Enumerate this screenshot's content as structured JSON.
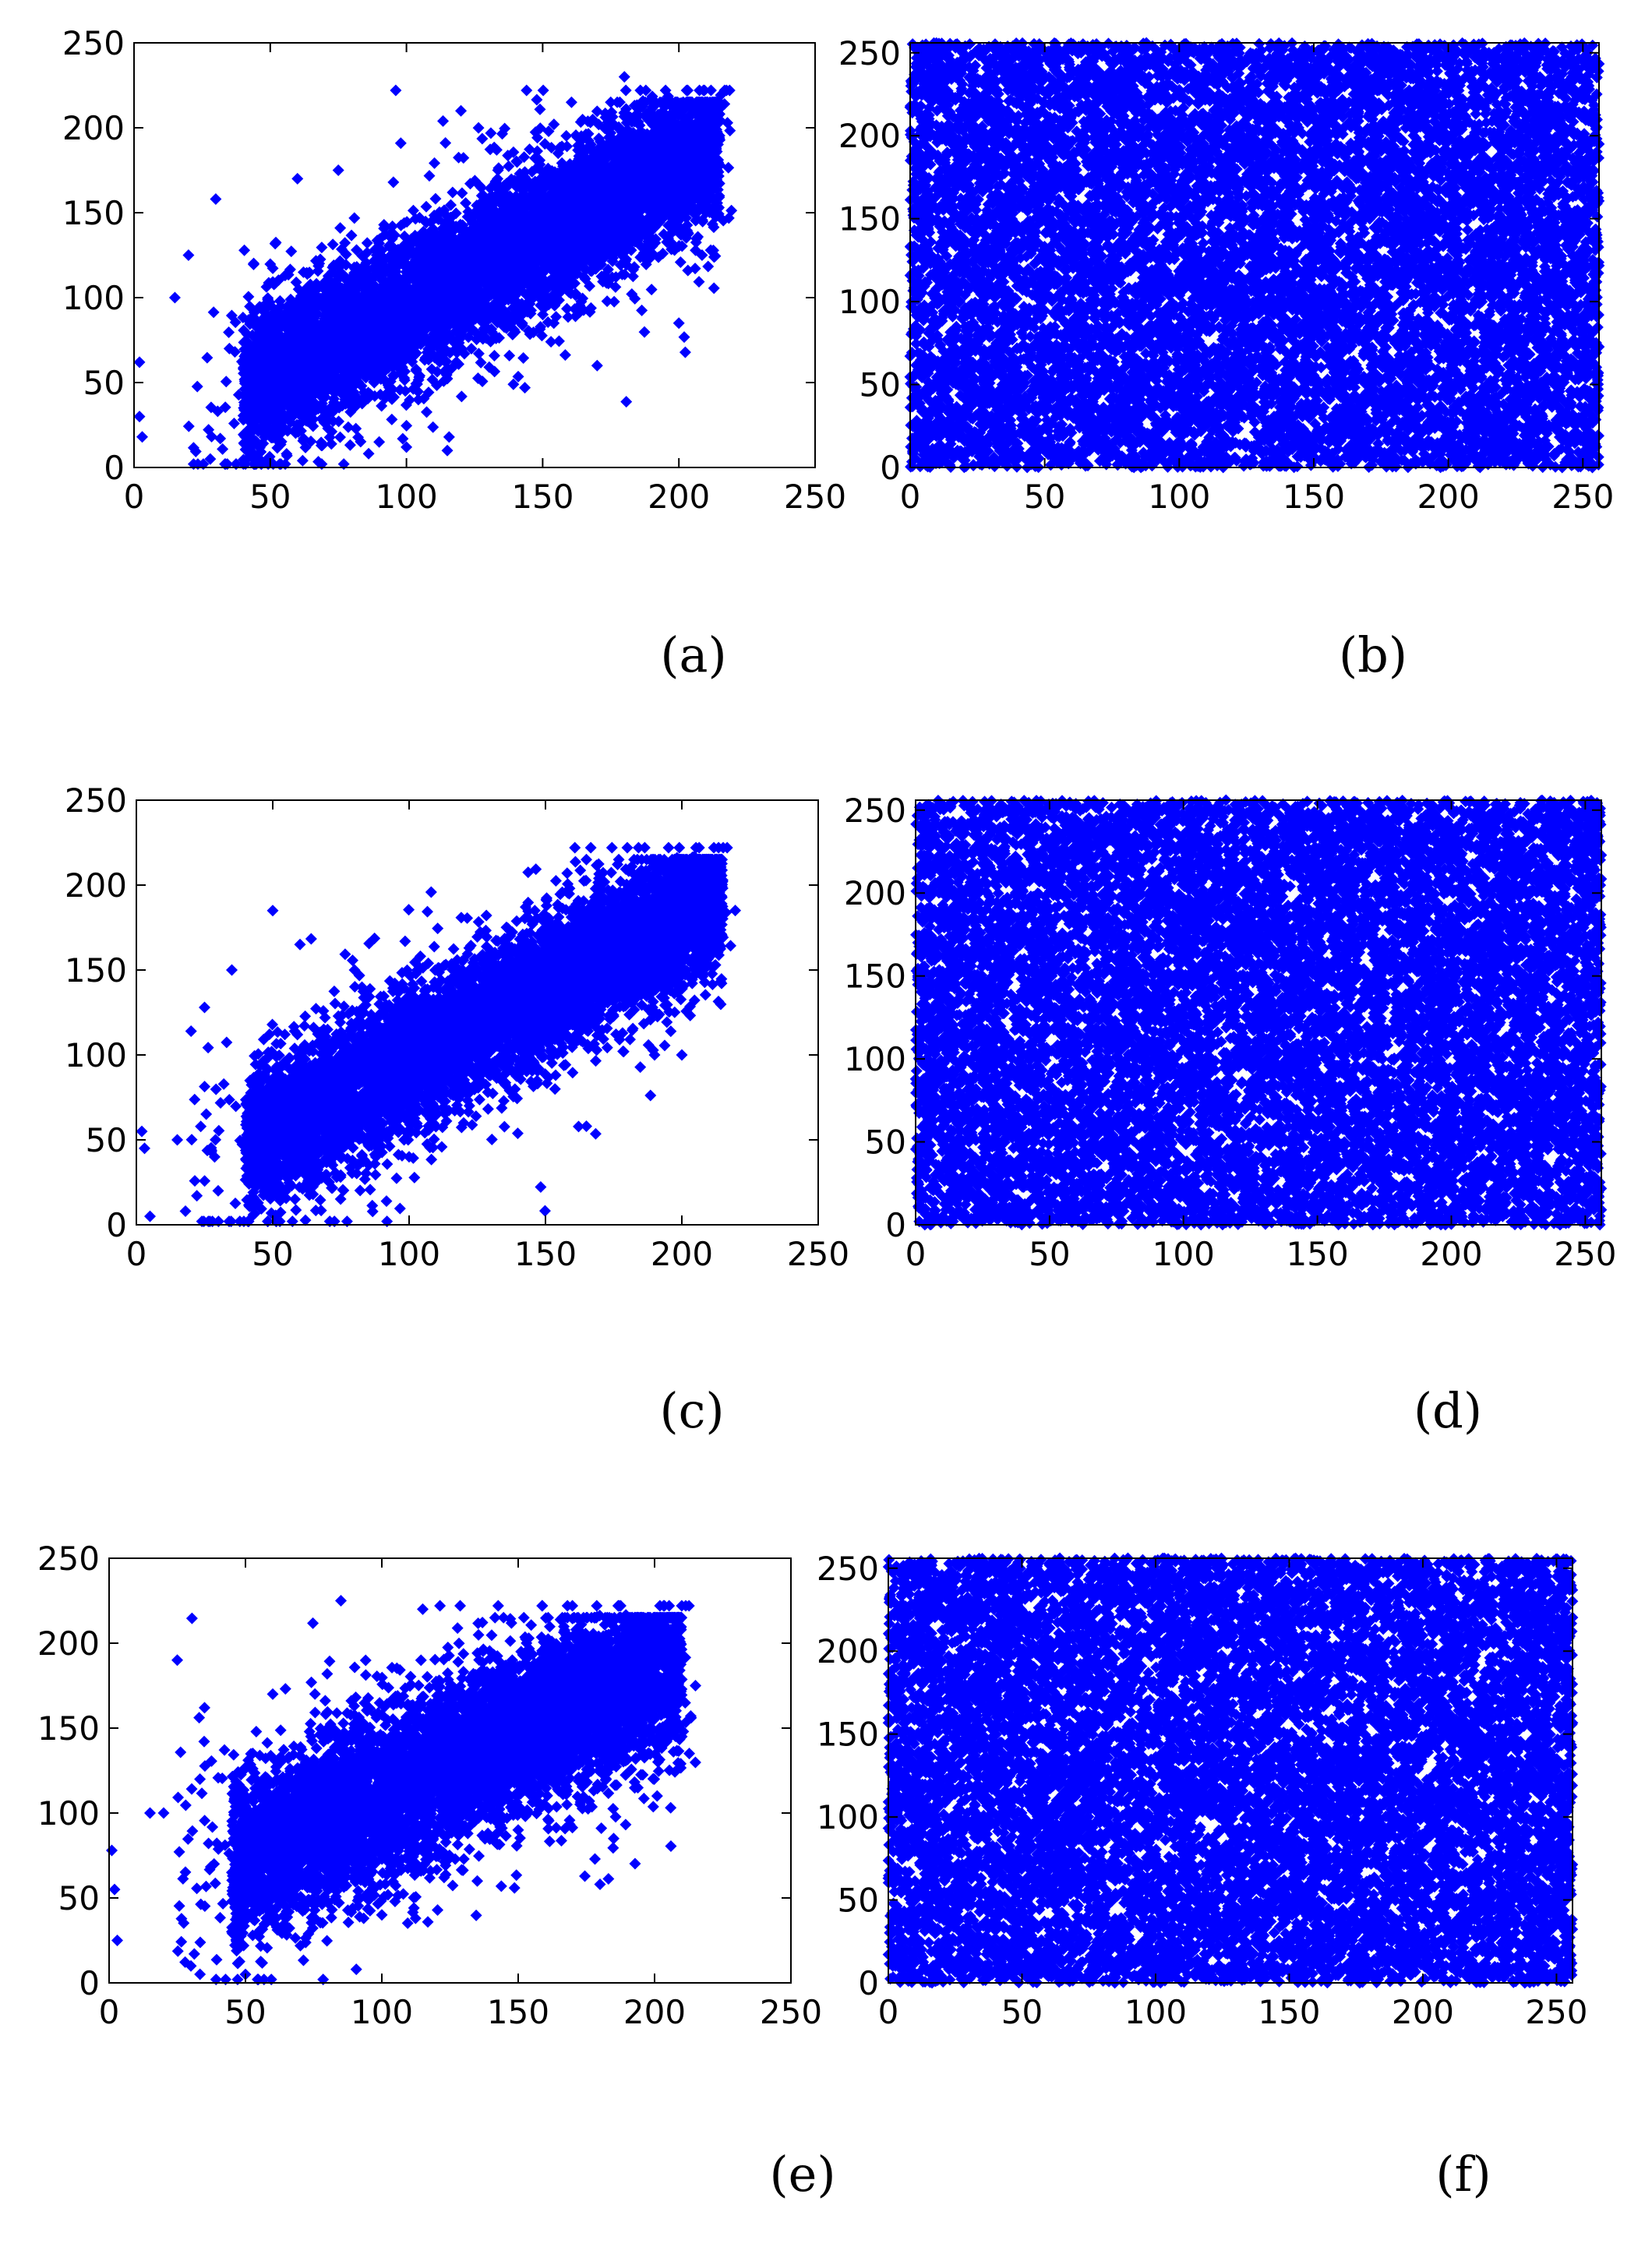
{
  "figure": {
    "marker_color": "#0000ff",
    "background": "#ffffff"
  },
  "chart_data": [
    {
      "type": "scatter",
      "caption": "(a)",
      "distribution": "correlated",
      "xlim": [
        0,
        250
      ],
      "ylim": [
        0,
        250
      ],
      "xticks": [
        0,
        50,
        100,
        150,
        200,
        250
      ],
      "yticks": [
        0,
        50,
        100,
        150,
        200,
        250
      ],
      "xtick_labels": [
        "0",
        "50",
        "100",
        "150",
        "200",
        "250"
      ],
      "ytick_labels": [
        "0",
        "50",
        "100",
        "150",
        "200",
        "250"
      ],
      "core": {
        "x_range": [
          40,
          215
        ],
        "slope": 0.85,
        "intercept": 10,
        "spread": 22
      },
      "outliers": [
        [
          2,
          62
        ],
        [
          2,
          30
        ],
        [
          3,
          18
        ],
        [
          28,
          5
        ],
        [
          15,
          100
        ],
        [
          20,
          125
        ],
        [
          30,
          158
        ],
        [
          56,
          8
        ],
        [
          90,
          15
        ],
        [
          100,
          12
        ],
        [
          115,
          10
        ],
        [
          180,
          230
        ],
        [
          170,
          60
        ],
        [
          200,
          85
        ],
        [
          210,
          150
        ],
        [
          120,
          210
        ],
        [
          60,
          170
        ],
        [
          75,
          175
        ],
        [
          35,
          70
        ],
        [
          45,
          50
        ]
      ]
    },
    {
      "type": "scatter",
      "caption": "(b)",
      "distribution": "uniform",
      "xlim": [
        0,
        256
      ],
      "ylim": [
        0,
        256
      ],
      "xticks": [
        0,
        50,
        100,
        150,
        200,
        250
      ],
      "yticks": [
        0,
        50,
        100,
        150,
        200,
        250
      ],
      "xtick_labels": [
        "0",
        "50",
        "100",
        "150",
        "200",
        "250"
      ],
      "ytick_labels": [
        "0",
        "50",
        "100",
        "150",
        "200",
        "250"
      ]
    },
    {
      "type": "scatter",
      "caption": "(c)",
      "distribution": "correlated",
      "xlim": [
        0,
        250
      ],
      "ylim": [
        0,
        250
      ],
      "xticks": [
        0,
        50,
        100,
        150,
        200,
        250
      ],
      "yticks": [
        0,
        50,
        100,
        150,
        200,
        250
      ],
      "xtick_labels": [
        "0",
        "50",
        "100",
        "150",
        "200",
        "250"
      ],
      "ytick_labels": [
        "0",
        "50",
        "100",
        "150",
        "200",
        "250"
      ],
      "core": {
        "x_range": [
          40,
          215
        ],
        "slope": 0.85,
        "intercept": 12,
        "spread": 21
      },
      "outliers": [
        [
          2,
          55
        ],
        [
          3,
          45
        ],
        [
          5,
          5
        ],
        [
          18,
          8
        ],
        [
          25,
          128
        ],
        [
          35,
          150
        ],
        [
          50,
          185
        ],
        [
          30,
          20
        ],
        [
          15,
          50
        ],
        [
          165,
          215
        ],
        [
          180,
          222
        ],
        [
          190,
          100
        ],
        [
          200,
          100
        ],
        [
          165,
          58
        ],
        [
          205,
          185
        ],
        [
          100,
          40
        ],
        [
          120,
          60
        ],
        [
          60,
          165
        ],
        [
          80,
          150
        ],
        [
          45,
          30
        ]
      ]
    },
    {
      "type": "scatter",
      "caption": "(d)",
      "distribution": "uniform",
      "xlim": [
        0,
        256
      ],
      "ylim": [
        0,
        256
      ],
      "xticks": [
        0,
        50,
        100,
        150,
        200,
        250
      ],
      "yticks": [
        0,
        50,
        100,
        150,
        200,
        250
      ],
      "xtick_labels": [
        "0",
        "50",
        "100",
        "150",
        "200",
        "250"
      ],
      "ytick_labels": [
        "0",
        "50",
        "100",
        "150",
        "200",
        "250"
      ]
    },
    {
      "type": "scatter",
      "caption": "(e)",
      "distribution": "correlated",
      "xlim": [
        0,
        250
      ],
      "ylim": [
        0,
        250
      ],
      "xticks": [
        0,
        50,
        100,
        150,
        200,
        250
      ],
      "yticks": [
        0,
        50,
        100,
        150,
        200,
        250
      ],
      "xtick_labels": [
        "0",
        "50",
        "100",
        "150",
        "200",
        "250"
      ],
      "ytick_labels": [
        "0",
        "50",
        "100",
        "150",
        "200",
        "250"
      ],
      "core": {
        "x_range": [
          45,
          210
        ],
        "slope": 0.75,
        "intercept": 35,
        "spread": 25
      },
      "outliers": [
        [
          1,
          78
        ],
        [
          2,
          55
        ],
        [
          3,
          25
        ],
        [
          25,
          190
        ],
        [
          35,
          162
        ],
        [
          85,
          225
        ],
        [
          115,
          220
        ],
        [
          30,
          10
        ],
        [
          15,
          100
        ],
        [
          20,
          100
        ],
        [
          180,
          58
        ],
        [
          185,
          85
        ],
        [
          210,
          145
        ],
        [
          215,
          175
        ],
        [
          150,
          90
        ],
        [
          100,
          40
        ],
        [
          50,
          5
        ],
        [
          60,
          170
        ],
        [
          45,
          65
        ],
        [
          135,
          60
        ]
      ]
    },
    {
      "type": "scatter",
      "caption": "(f)",
      "distribution": "uniform",
      "xlim": [
        0,
        256
      ],
      "ylim": [
        0,
        256
      ],
      "xticks": [
        0,
        50,
        100,
        150,
        200,
        250
      ],
      "yticks": [
        0,
        50,
        100,
        150,
        200,
        250
      ],
      "xtick_labels": [
        "0",
        "50",
        "100",
        "150",
        "200",
        "250"
      ],
      "ytick_labels": [
        "0",
        "50",
        "100",
        "150",
        "200",
        "250"
      ]
    }
  ]
}
